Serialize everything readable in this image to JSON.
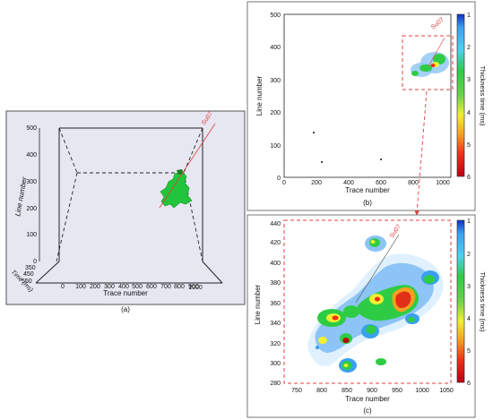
{
  "panel_a": {
    "caption": "(a)",
    "y_axis_label": "Line number",
    "x_axis_label": "Trace number",
    "time_axis_label": "Time (ms)",
    "y_ticks": [
      "500",
      "400",
      "300",
      "200",
      "100",
      "0"
    ],
    "x_ticks": [
      "0",
      "100",
      "200",
      "300",
      "400",
      "500",
      "600",
      "700",
      "800",
      "900",
      "1000"
    ],
    "time_ticks": [
      "350",
      "450",
      "550"
    ],
    "well_label": "Su07",
    "colors": {
      "background": "#e6e7f1",
      "body": "#21c43a",
      "well": "#e0403f"
    }
  },
  "panel_b": {
    "caption": "(b)",
    "y_axis_label": "Line number",
    "x_axis_label": "Trace number",
    "y_ticks": [
      "500",
      "400",
      "300",
      "200",
      "100",
      "0"
    ],
    "x_ticks": [
      "0",
      "200",
      "400",
      "600",
      "800",
      "1000"
    ],
    "well_label": "Su07",
    "colorbar_label": "Thickness time (ms)",
    "colorbar_ticks": [
      "1",
      "2",
      "3",
      "4",
      "5",
      "6"
    ]
  },
  "panel_c": {
    "caption": "(c)",
    "y_axis_label": "Line number",
    "x_axis_label": "Trace number",
    "y_ticks": [
      "440",
      "420",
      "400",
      "380",
      "360",
      "340",
      "320",
      "300",
      "280"
    ],
    "x_ticks": [
      "750",
      "800",
      "850",
      "900",
      "950",
      "1000",
      "1050"
    ],
    "well_label": "Su07",
    "colorbar_label": "Thickness time (ms)",
    "colorbar_ticks": [
      "1",
      "2",
      "3",
      "4",
      "5",
      "6"
    ]
  }
}
